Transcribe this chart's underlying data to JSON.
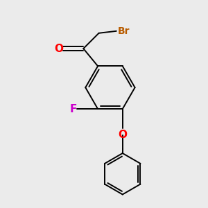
{
  "bg_color": "#ebebeb",
  "bond_color": "#000000",
  "atom_colors": {
    "Br": "#b85c00",
    "O_carbonyl": "#ff0000",
    "O_ether": "#ff0000",
    "F": "#cc00cc"
  },
  "line_width": 1.4,
  "font_size": 10
}
